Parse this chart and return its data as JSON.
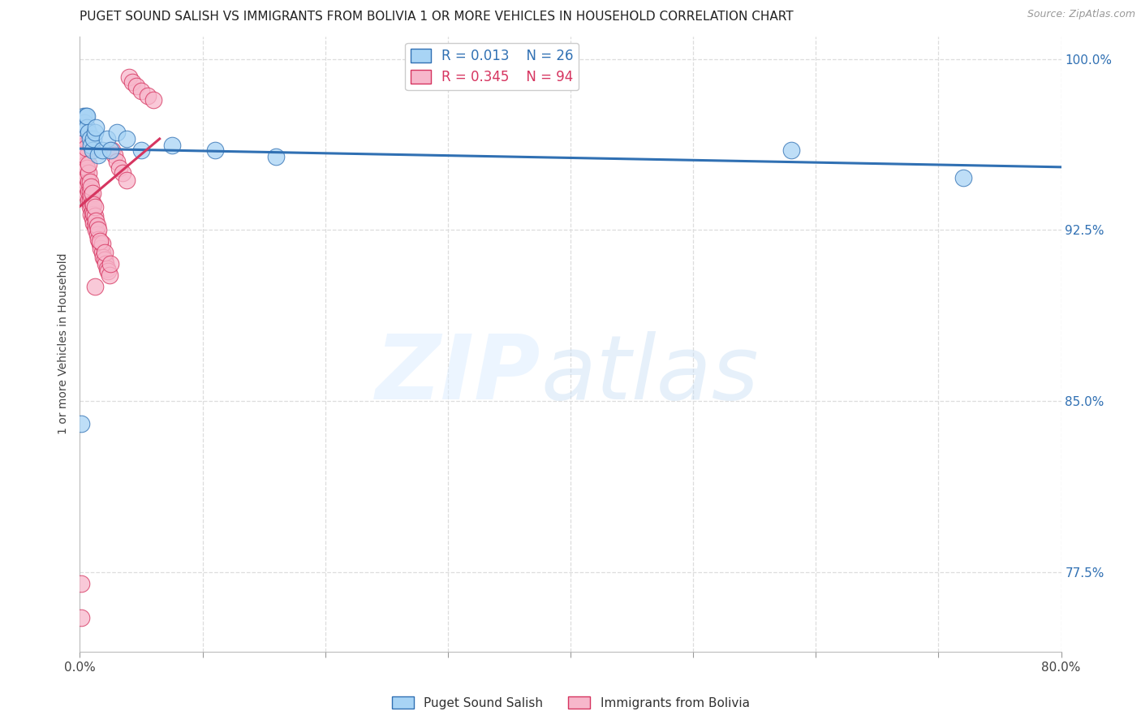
{
  "title": "PUGET SOUND SALISH VS IMMIGRANTS FROM BOLIVIA 1 OR MORE VEHICLES IN HOUSEHOLD CORRELATION CHART",
  "source": "Source: ZipAtlas.com",
  "ylabel": "1 or more Vehicles in Household",
  "xlim": [
    0.0,
    0.8
  ],
  "ylim": [
    0.74,
    1.01
  ],
  "xticks": [
    0.0,
    0.1,
    0.2,
    0.3,
    0.4,
    0.5,
    0.6,
    0.7,
    0.8
  ],
  "xticklabels": [
    "0.0%",
    "",
    "",
    "",
    "",
    "",
    "",
    "",
    "80.0%"
  ],
  "yticks_right": [
    1.0,
    0.925,
    0.85,
    0.775
  ],
  "yticklabels_right": [
    "100.0%",
    "92.5%",
    "85.0%",
    "77.5%"
  ],
  "legend_blue_r": "R = 0.013",
  "legend_blue_n": "N = 26",
  "legend_pink_r": "R = 0.345",
  "legend_pink_n": "N = 94",
  "blue_color": "#a8d4f5",
  "pink_color": "#f7b7cb",
  "trend_blue_color": "#3070b3",
  "trend_pink_color": "#d63560",
  "grid_color": "#dddddd",
  "blue_points_x": [
    0.001,
    0.002,
    0.003,
    0.004,
    0.005,
    0.006,
    0.006,
    0.007,
    0.008,
    0.009,
    0.01,
    0.011,
    0.012,
    0.013,
    0.015,
    0.018,
    0.022,
    0.025,
    0.03,
    0.038,
    0.05,
    0.075,
    0.11,
    0.16,
    0.58,
    0.72
  ],
  "blue_points_y": [
    0.84,
    0.97,
    0.975,
    0.972,
    0.975,
    0.97,
    0.975,
    0.968,
    0.965,
    0.962,
    0.96,
    0.965,
    0.968,
    0.97,
    0.958,
    0.96,
    0.965,
    0.96,
    0.968,
    0.965,
    0.96,
    0.962,
    0.96,
    0.957,
    0.96,
    0.948
  ],
  "pink_points_x": [
    0.001,
    0.001,
    0.001,
    0.001,
    0.001,
    0.002,
    0.002,
    0.002,
    0.002,
    0.002,
    0.002,
    0.002,
    0.002,
    0.003,
    0.003,
    0.003,
    0.003,
    0.003,
    0.003,
    0.003,
    0.003,
    0.003,
    0.004,
    0.004,
    0.004,
    0.004,
    0.004,
    0.004,
    0.004,
    0.005,
    0.005,
    0.005,
    0.005,
    0.005,
    0.005,
    0.006,
    0.006,
    0.006,
    0.006,
    0.007,
    0.007,
    0.007,
    0.007,
    0.007,
    0.008,
    0.008,
    0.008,
    0.008,
    0.009,
    0.009,
    0.009,
    0.009,
    0.01,
    0.01,
    0.01,
    0.01,
    0.011,
    0.011,
    0.011,
    0.012,
    0.012,
    0.012,
    0.013,
    0.013,
    0.014,
    0.014,
    0.015,
    0.015,
    0.016,
    0.017,
    0.018,
    0.018,
    0.019,
    0.02,
    0.021,
    0.022,
    0.023,
    0.024,
    0.026,
    0.028,
    0.03,
    0.032,
    0.035,
    0.038,
    0.04,
    0.043,
    0.046,
    0.05,
    0.055,
    0.06,
    0.012,
    0.016,
    0.02,
    0.025
  ],
  "pink_points_y": [
    0.755,
    0.77,
    0.955,
    0.963,
    0.97,
    0.95,
    0.955,
    0.96,
    0.962,
    0.965,
    0.967,
    0.97,
    0.972,
    0.947,
    0.95,
    0.953,
    0.956,
    0.96,
    0.963,
    0.966,
    0.968,
    0.97,
    0.945,
    0.948,
    0.951,
    0.955,
    0.958,
    0.962,
    0.965,
    0.942,
    0.946,
    0.95,
    0.954,
    0.957,
    0.961,
    0.94,
    0.944,
    0.948,
    0.952,
    0.938,
    0.942,
    0.946,
    0.95,
    0.954,
    0.935,
    0.938,
    0.942,
    0.946,
    0.932,
    0.936,
    0.94,
    0.944,
    0.93,
    0.933,
    0.937,
    0.941,
    0.928,
    0.932,
    0.936,
    0.927,
    0.931,
    0.935,
    0.925,
    0.929,
    0.923,
    0.927,
    0.921,
    0.925,
    0.919,
    0.917,
    0.915,
    0.919,
    0.913,
    0.912,
    0.91,
    0.908,
    0.907,
    0.905,
    0.96,
    0.958,
    0.955,
    0.952,
    0.95,
    0.947,
    0.992,
    0.99,
    0.988,
    0.986,
    0.984,
    0.982,
    0.9,
    0.92,
    0.915,
    0.91
  ]
}
